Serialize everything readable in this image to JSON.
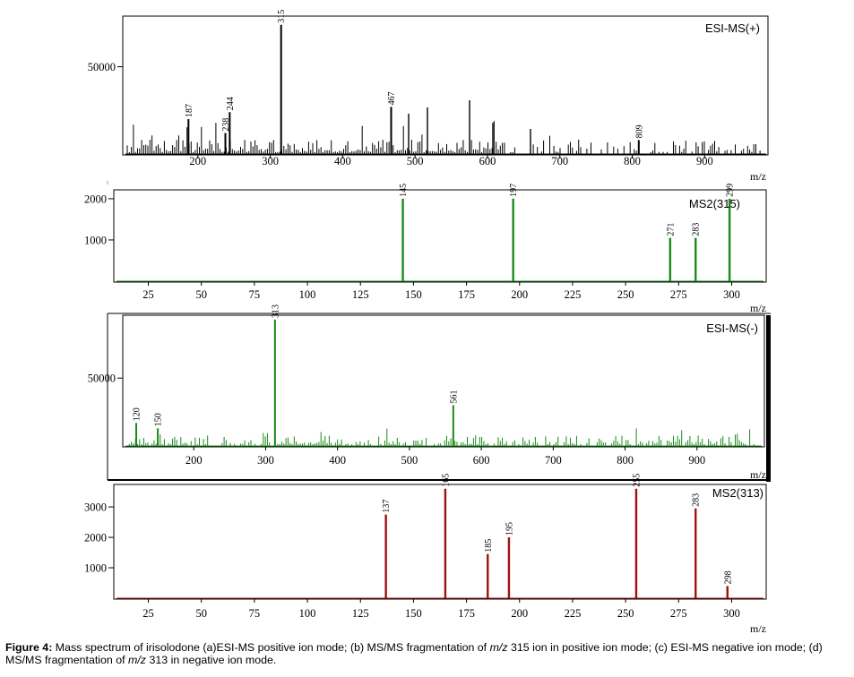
{
  "colors": {
    "panel_a": "#000000",
    "panel_b": "#1a8a1a",
    "panel_c": "#1a8a1a",
    "panel_d": "#a01010"
  },
  "chart_data": [
    {
      "type": "bar",
      "title": "ESI-MS(+)",
      "xlabel": "m/z",
      "xlim": [
        100,
        985
      ],
      "ylim": [
        0,
        78000
      ],
      "xticks": [
        200,
        300,
        400,
        500,
        600,
        700,
        800,
        900
      ],
      "yticks": [
        50000
      ],
      "peaks": [
        {
          "x": 187,
          "y": 20000,
          "label": "187"
        },
        {
          "x": 238,
          "y": 12000,
          "label": "238"
        },
        {
          "x": 244,
          "y": 24000,
          "label": "244"
        },
        {
          "x": 315,
          "y": 74000,
          "label": "315"
        },
        {
          "x": 467,
          "y": 27000,
          "label": "467"
        },
        {
          "x": 809,
          "y": 8000,
          "label": "809"
        }
      ]
    },
    {
      "type": "bar",
      "title": "MS2(315)",
      "xlabel": "m/z",
      "xlim": [
        10,
        315
      ],
      "ylim": [
        0,
        2150
      ],
      "xticks": [
        25,
        50,
        75,
        100,
        125,
        150,
        175,
        200,
        225,
        250,
        275,
        300
      ],
      "yticks": [
        1000,
        2000
      ],
      "peaks": [
        {
          "x": 145,
          "y": 2000,
          "label": "145"
        },
        {
          "x": 197,
          "y": 2000,
          "label": "197"
        },
        {
          "x": 271,
          "y": 1050,
          "label": "271"
        },
        {
          "x": 283,
          "y": 1050,
          "label": "283"
        },
        {
          "x": 299,
          "y": 2000,
          "label": "299"
        }
      ]
    },
    {
      "type": "bar",
      "title": "ESI-MS(-)",
      "xlabel": "m/z",
      "xlim": [
        105,
        990
      ],
      "ylim": [
        0,
        95000
      ],
      "xticks": [
        200,
        300,
        400,
        500,
        600,
        700,
        800,
        900
      ],
      "yticks": [
        50000
      ],
      "peaks": [
        {
          "x": 120,
          "y": 17000,
          "label": "120"
        },
        {
          "x": 150,
          "y": 13000,
          "label": "150"
        },
        {
          "x": 313,
          "y": 93000,
          "label": "313"
        },
        {
          "x": 561,
          "y": 30000,
          "label": "561"
        }
      ]
    },
    {
      "type": "bar",
      "title": "MS2(313)",
      "xlabel": "m/z",
      "xlim": [
        10,
        315
      ],
      "ylim": [
        0,
        3650
      ],
      "xticks": [
        25,
        50,
        75,
        100,
        125,
        150,
        175,
        200,
        225,
        250,
        275,
        300
      ],
      "yticks": [
        1000,
        2000,
        3000
      ],
      "peaks": [
        {
          "x": 137,
          "y": 2750,
          "label": "137"
        },
        {
          "x": 165,
          "y": 3600,
          "label": "165"
        },
        {
          "x": 185,
          "y": 1450,
          "label": "185"
        },
        {
          "x": 195,
          "y": 2000,
          "label": "195"
        },
        {
          "x": 255,
          "y": 3600,
          "label": "255"
        },
        {
          "x": 283,
          "y": 2950,
          "label": "283"
        },
        {
          "x": 298,
          "y": 400,
          "label": "298"
        }
      ]
    }
  ],
  "caption": {
    "figure_label": "Figure 4:",
    "part1": " Mass spectrum of irisolodone (a)ESI-MS positive ion mode; (b) MS/MS fragmentation of ",
    "mz1": "m/z",
    "part2": " 315 ion in positive ion mode; (c) ESI-MS negative ion mode; (d) MS/MS fragmentation of ",
    "mz2": "m/z",
    "part3": " 313 in negative ion mode."
  }
}
